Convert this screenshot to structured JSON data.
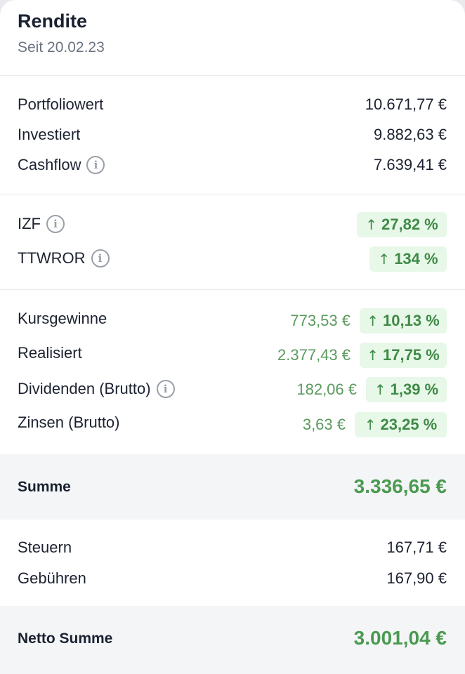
{
  "header": {
    "title": "Rendite",
    "subtitle": "Seit 20.02.23"
  },
  "overview": [
    {
      "label": "Portfoliowert",
      "value": "10.671,77 €"
    },
    {
      "label": "Investiert",
      "value": "9.882,63 €"
    },
    {
      "label": "Cashflow",
      "value": "7.639,41 €",
      "info": true
    }
  ],
  "rates": [
    {
      "label": "IZF",
      "badge": "27,82 %"
    },
    {
      "label": "TTWROR",
      "badge": "134 %"
    }
  ],
  "gains": [
    {
      "label": "Kursgewinne",
      "amount": "773,53 €",
      "badge": "10,13 %"
    },
    {
      "label": "Realisiert",
      "amount": "2.377,43 €",
      "badge": "17,75 %"
    },
    {
      "label": "Dividenden (Brutto)",
      "amount": "182,06 €",
      "badge": "1,39 %",
      "info": true
    },
    {
      "label": "Zinsen (Brutto)",
      "amount": "3,63 €",
      "badge": "23,25 %"
    }
  ],
  "summe": {
    "label": "Summe",
    "value": "3.336,65 €"
  },
  "costs": [
    {
      "label": "Steuern",
      "value": "167,71 €"
    },
    {
      "label": "Gebühren",
      "value": "167,90 €"
    }
  ],
  "netto": {
    "label": "Netto Summe",
    "value": "3.001,04 €"
  },
  "icons": {
    "info": "info-icon",
    "arrow": "arrow-up-icon"
  },
  "colors": {
    "positive": "#4a9a50",
    "badge_bg": "#e7f7e8",
    "band_bg": "#f4f5f7"
  }
}
